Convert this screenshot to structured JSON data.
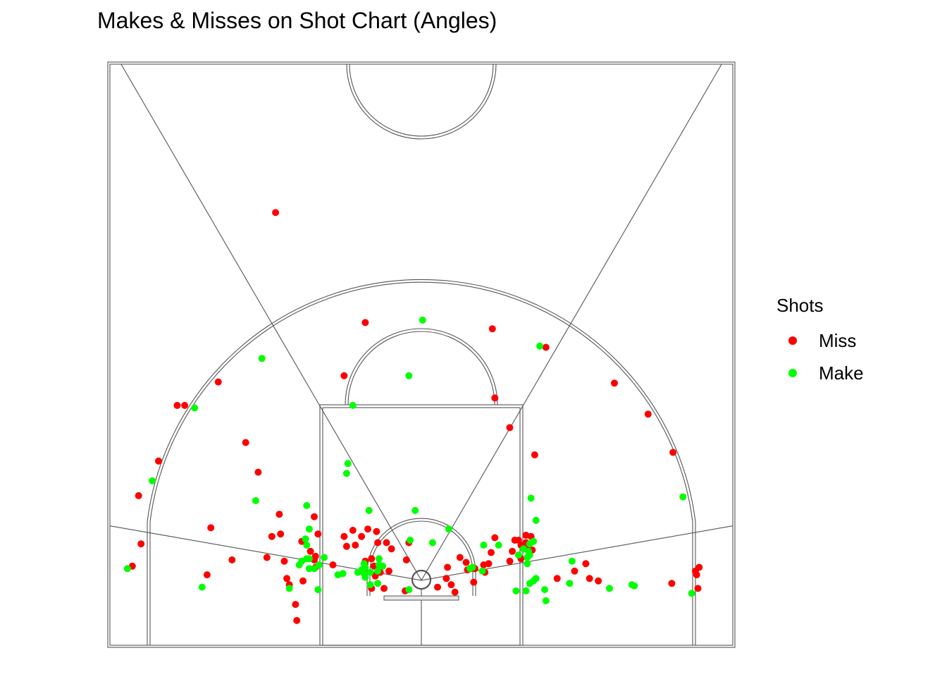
{
  "chart_data": {
    "type": "scatter",
    "title": "Makes & Misses on Shot Chart (Angles)",
    "xlabel": "",
    "ylabel": "",
    "grid": false,
    "legend": {
      "title": "Shots",
      "placement": "right",
      "entries": [
        {
          "name": "Miss",
          "color": "#ff0000"
        },
        {
          "name": "Make",
          "color": "#00ff00"
        }
      ]
    },
    "court": {
      "units": "feet",
      "xlim": [
        -25,
        25
      ],
      "ylim": [
        0,
        47
      ],
      "hoop": [
        0,
        5.25
      ],
      "angle_lines_deg": [
        -80,
        -30,
        30,
        80
      ]
    },
    "series": [
      {
        "name": "Miss",
        "color": "#ff0000",
        "points": [
          [
            -11.7,
            35.0
          ],
          [
            -4.5,
            26.1
          ],
          [
            5.7,
            25.6
          ],
          [
            10.0,
            24.1
          ],
          [
            -6.2,
            21.8
          ],
          [
            5.9,
            20.0
          ],
          [
            -16.3,
            21.3
          ],
          [
            -19.0,
            19.4
          ],
          [
            -19.6,
            19.4
          ],
          [
            -14.1,
            16.4
          ],
          [
            7.1,
            17.6
          ],
          [
            9.1,
            15.4
          ],
          [
            -13.1,
            14.0
          ],
          [
            -21.1,
            14.9
          ],
          [
            15.5,
            21.2
          ],
          [
            18.2,
            18.7
          ],
          [
            20.2,
            15.6
          ],
          [
            -22.7,
            12.1
          ],
          [
            -22.5,
            8.2
          ],
          [
            -23.2,
            6.4
          ],
          [
            -16.9,
            9.5
          ],
          [
            -15.2,
            6.9
          ],
          [
            -17.2,
            5.7
          ],
          [
            -11.4,
            10.6
          ],
          [
            -11.3,
            9.0
          ],
          [
            -11.0,
            6.8
          ],
          [
            -10.8,
            5.4
          ],
          [
            -10.6,
            4.9
          ],
          [
            -10.1,
            3.3
          ],
          [
            -9.5,
            5.2
          ],
          [
            -8.6,
            10.4
          ],
          [
            -8.3,
            9.0
          ],
          [
            -8.5,
            7.2
          ],
          [
            -8.9,
            7.6
          ],
          [
            -8.5,
            6.3
          ],
          [
            -8.6,
            6.9
          ],
          [
            -9.6,
            8.4
          ],
          [
            -7.1,
            6.5
          ],
          [
            -6.2,
            8.8
          ],
          [
            -6.0,
            8.0
          ],
          [
            -5.5,
            9.3
          ],
          [
            -5.3,
            8.1
          ],
          [
            -4.8,
            8.8
          ],
          [
            -4.3,
            9.4
          ],
          [
            -4.0,
            7.0
          ],
          [
            -3.6,
            9.2
          ],
          [
            -3.5,
            8.3
          ],
          [
            -3.3,
            5.9
          ],
          [
            -3.7,
            5.6
          ],
          [
            -4.0,
            4.6
          ],
          [
            -3.0,
            4.6
          ],
          [
            -2.8,
            8.3
          ],
          [
            -2.6,
            6.0
          ],
          [
            -2.4,
            7.8
          ],
          [
            -3.8,
            6.4
          ],
          [
            -4.5,
            6.8
          ],
          [
            -10.0,
            2.0
          ],
          [
            -12.4,
            7.1
          ],
          [
            -12.0,
            8.8
          ],
          [
            1.3,
            4.7
          ],
          [
            2.1,
            6.3
          ],
          [
            2.0,
            5.4
          ],
          [
            2.4,
            4.9
          ],
          [
            3.1,
            7.1
          ],
          [
            3.6,
            6.7
          ],
          [
            3.7,
            6.1
          ],
          [
            3.9,
            6.2
          ],
          [
            4.2,
            5.1
          ],
          [
            5.0,
            6.5
          ],
          [
            5.4,
            6.6
          ],
          [
            5.6,
            7.5
          ],
          [
            5.9,
            8.7
          ],
          [
            7.3,
            7.6
          ],
          [
            7.5,
            8.5
          ],
          [
            7.8,
            8.5
          ],
          [
            8.0,
            8.1
          ],
          [
            8.2,
            7.8
          ],
          [
            8.4,
            8.3
          ],
          [
            8.6,
            8.1
          ],
          [
            8.4,
            8.9
          ],
          [
            8.8,
            8.8
          ],
          [
            8.9,
            7.7
          ],
          [
            8.0,
            7.0
          ],
          [
            7.1,
            6.8
          ],
          [
            5.1,
            5.9
          ],
          [
            4.3,
            6.2
          ],
          [
            10.9,
            5.4
          ],
          [
            12.3,
            6.0
          ],
          [
            13.2,
            6.6
          ],
          [
            13.5,
            5.4
          ],
          [
            14.2,
            5.2
          ],
          [
            20.1,
            5.0
          ],
          [
            22.0,
            6.0
          ],
          [
            22.3,
            6.3
          ],
          [
            22.1,
            5.7
          ],
          [
            22.2,
            4.6
          ],
          [
            -1.3,
            4.4
          ],
          [
            -1.0,
            8.3
          ],
          [
            -1.2,
            6.9
          ],
          [
            2.7,
            4.3
          ]
        ]
      },
      {
        "name": "Make",
        "color": "#00ff00",
        "points": [
          [
            0.1,
            26.3
          ],
          [
            9.5,
            24.2
          ],
          [
            -12.8,
            23.2
          ],
          [
            -1.0,
            21.8
          ],
          [
            -5.5,
            19.4
          ],
          [
            -18.2,
            19.2
          ],
          [
            -21.6,
            13.3
          ],
          [
            -5.9,
            14.7
          ],
          [
            -6.0,
            13.9
          ],
          [
            -9.2,
            11.3
          ],
          [
            -9.0,
            9.4
          ],
          [
            -9.3,
            8.6
          ],
          [
            -9.6,
            6.8
          ],
          [
            -9.2,
            7.0
          ],
          [
            -9.0,
            6.2
          ],
          [
            -8.6,
            6.2
          ],
          [
            -9.8,
            6.5
          ],
          [
            -8.3,
            4.5
          ],
          [
            -6.7,
            5.7
          ],
          [
            -6.3,
            5.8
          ],
          [
            -5.1,
            5.9
          ],
          [
            -4.8,
            6.1
          ],
          [
            -4.6,
            5.8
          ],
          [
            -4.5,
            5.5
          ],
          [
            -4.6,
            6.6
          ],
          [
            -4.1,
            5.9
          ],
          [
            -4.1,
            4.9
          ],
          [
            -3.5,
            5.0
          ],
          [
            -3.5,
            6.0
          ],
          [
            -3.4,
            6.5
          ],
          [
            -3.4,
            7.0
          ],
          [
            -4.2,
            10.9
          ],
          [
            -0.9,
            8.5
          ],
          [
            -0.5,
            10.9
          ],
          [
            0.9,
            8.3
          ],
          [
            2.2,
            9.4
          ],
          [
            4.1,
            6.3
          ],
          [
            4.9,
            6.0
          ],
          [
            5.0,
            8.1
          ],
          [
            6.2,
            8.1
          ],
          [
            7.8,
            7.3
          ],
          [
            8.5,
            7.1
          ],
          [
            8.7,
            7.3
          ],
          [
            8.8,
            11.9
          ],
          [
            9.2,
            10.1
          ],
          [
            9.0,
            8.4
          ],
          [
            8.4,
            4.4
          ],
          [
            7.6,
            4.4
          ],
          [
            8.5,
            6.6
          ],
          [
            8.7,
            5.0
          ],
          [
            9.2,
            5.4
          ],
          [
            9.0,
            5.2
          ],
          [
            9.9,
            4.5
          ],
          [
            10.0,
            3.6
          ],
          [
            11.9,
            5.0
          ],
          [
            12.1,
            6.8
          ],
          [
            15.1,
            4.6
          ],
          [
            16.9,
            4.9
          ],
          [
            17.1,
            4.8
          ],
          [
            21.7,
            4.2
          ],
          [
            -17.6,
            4.7
          ],
          [
            -23.6,
            6.2
          ],
          [
            -10.6,
            4.6
          ],
          [
            -13.3,
            11.7
          ],
          [
            -1.0,
            4.5
          ],
          [
            -9.2,
            8.1
          ],
          [
            -8.2,
            6.5
          ],
          [
            -7.8,
            7.1
          ],
          [
            -3.1,
            6.4
          ],
          [
            3.9,
            6.2
          ],
          [
            8.7,
            8.2
          ],
          [
            21.0,
            12.0
          ],
          [
            -9.0,
            7.0
          ],
          [
            -4.5,
            6.3
          ],
          [
            8.2,
            7.8
          ],
          [
            8.6,
            7.6
          ]
        ]
      }
    ]
  }
}
